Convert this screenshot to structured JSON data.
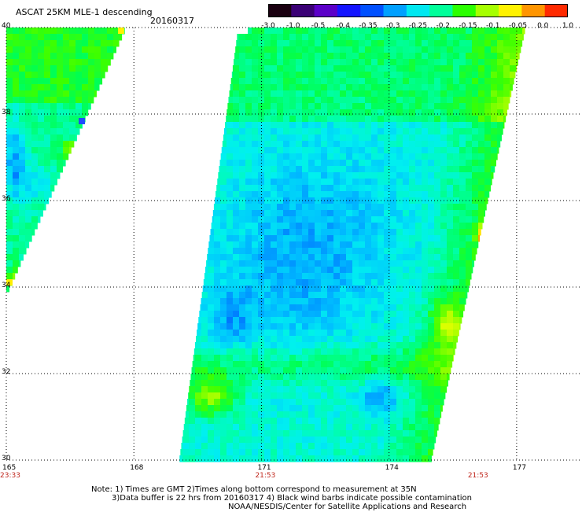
{
  "title": "ASCAT 25KM MLE-1 descending",
  "date": "20160317",
  "colorbar": {
    "ticks": [
      "-3.0",
      "-1.0",
      "-0.5",
      "-0.4",
      "-0.35",
      "-0.3",
      "-0.25",
      "-0.2",
      "-0.15",
      "-0.1",
      "-0.05",
      "0.0",
      "1.0"
    ],
    "colors": [
      "#1a0010",
      "#3a0075",
      "#5b00c8",
      "#1414ff",
      "#0050ff",
      "#00a0ff",
      "#00e8f0",
      "#00ff9a",
      "#2bff00",
      "#a6ff00",
      "#fff200",
      "#ff9500",
      "#ff2a00"
    ]
  },
  "chart_data": {
    "type": "heatmap",
    "title": "ASCAT 25KM MLE-1 descending",
    "x_ticks": [
      "165",
      "168",
      "171",
      "174",
      "177"
    ],
    "y_ticks": [
      "30",
      "32",
      "34",
      "36",
      "38",
      "40"
    ],
    "xlim": [
      165,
      178.5
    ],
    "ylim": [
      30,
      40
    ],
    "grid": true,
    "time_labels": [
      {
        "lon": 165,
        "text": "23:33"
      },
      {
        "lon": 171,
        "text": "21:53"
      },
      {
        "lon": 176,
        "text": "21:53"
      }
    ],
    "swaths": [
      {
        "name": "west",
        "lon_range": [
          165,
          168
        ],
        "lat_range": [
          34,
          40
        ],
        "dominant_range": [
          -0.3,
          -0.15
        ]
      },
      {
        "name": "main",
        "lon_range": [
          169.3,
          177.8
        ],
        "lat_range": [
          30,
          40
        ],
        "dominant_range": [
          -0.35,
          -0.05
        ]
      }
    ]
  },
  "notes": [
    "Note: 1) Times are GMT 2)Times along bottom correspond to measurement at 35N",
    "3)Data buffer is 22 hrs from 20160317 4) Black wind barbs indicate possible contamination",
    "NOAA/NESDIS/Center for Satellite Applications and Research"
  ]
}
